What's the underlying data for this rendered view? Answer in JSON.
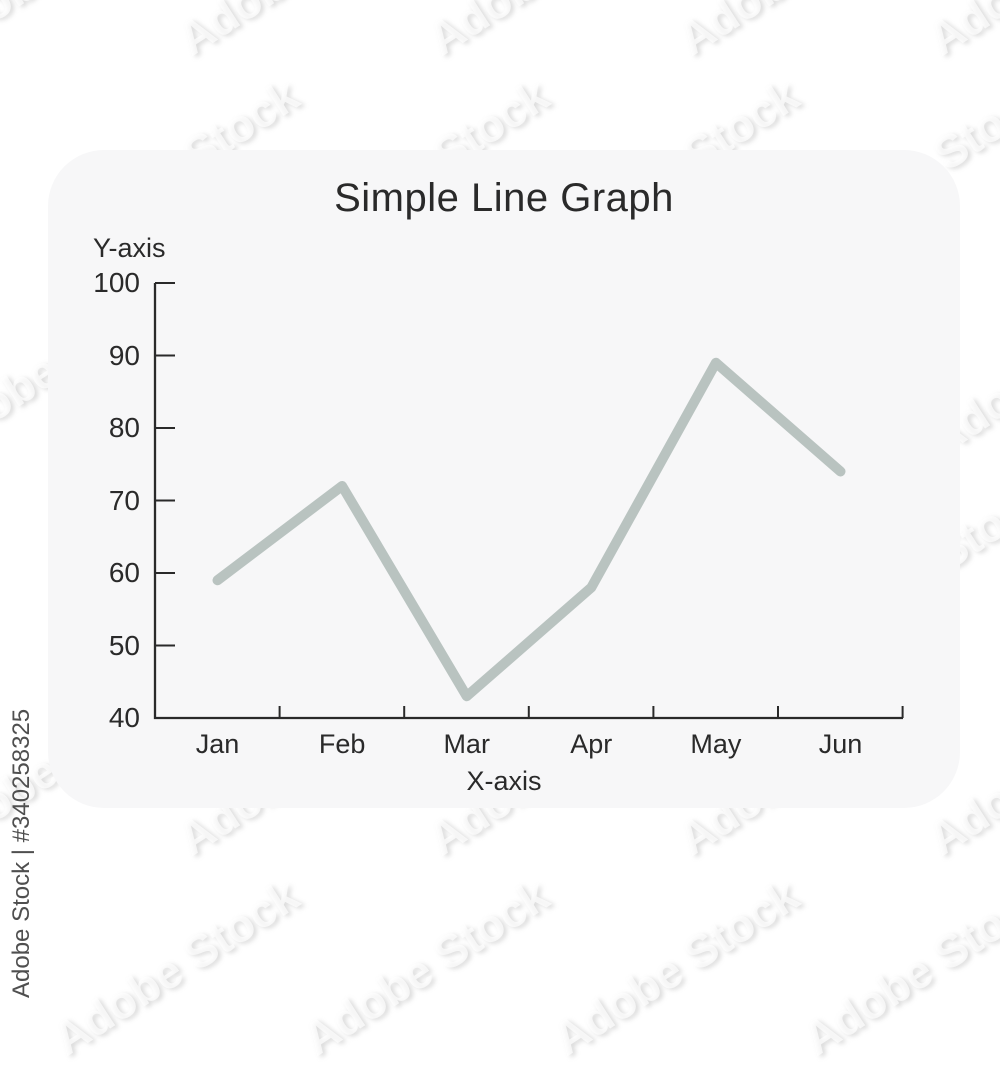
{
  "page": {
    "background_color": "#ffffff",
    "panel_color": "#f7f7f8"
  },
  "watermark": {
    "tile_text": "Adobe Stock",
    "side_text": "Adobe Stock | #340258325"
  },
  "chart_data": {
    "type": "line",
    "title": "Simple Line Graph",
    "xlabel": "X-axis",
    "ylabel": "Y-axis",
    "categories": [
      "Jan",
      "Feb",
      "Mar",
      "Apr",
      "May",
      "Jun"
    ],
    "values": [
      59,
      72,
      43,
      58,
      89,
      74
    ],
    "ylim": [
      40,
      100
    ],
    "yticks": [
      40,
      50,
      60,
      70,
      80,
      90,
      100
    ],
    "grid": false,
    "legend": false,
    "line_color": "#b9c3c0",
    "axis_color": "#2a2a2a",
    "text_color": "#2a2a2a"
  }
}
